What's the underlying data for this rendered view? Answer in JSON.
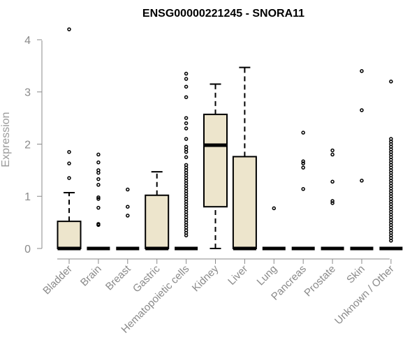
{
  "chart_data": {
    "type": "boxplot",
    "title": "ENSG00000221245 - SNORA11",
    "xlabel": "",
    "ylabel": "Expression",
    "ylim": [
      0,
      4.2
    ],
    "yticks": [
      0,
      1,
      2,
      3,
      4
    ],
    "grid": false,
    "legend": "none",
    "colors": {
      "box_fill": "#ede5cc",
      "stroke": "#000000",
      "axis": "#8a8a8a"
    },
    "categories": [
      "Bladder",
      "Brain",
      "Breast",
      "Gastric",
      "Hematopoietic cells",
      "Kidney",
      "Liver",
      "Lung",
      "Pancreas",
      "Prostate",
      "Skin",
      "Unknown / Other"
    ],
    "boxes": [
      {
        "name": "Bladder",
        "q1": 0,
        "median": 0,
        "q3": 0.52,
        "whisker_low": 0,
        "whisker_high": 1.07,
        "outliers": [
          1.35,
          1.63,
          1.85,
          4.2
        ]
      },
      {
        "name": "Brain",
        "q1": 0,
        "median": 0,
        "q3": 0,
        "whisker_low": 0,
        "whisker_high": 0,
        "outliers": [
          0.45,
          0.47,
          0.78,
          0.95,
          0.98,
          1.22,
          1.33,
          1.45,
          1.5,
          1.65,
          1.8
        ]
      },
      {
        "name": "Breast",
        "q1": 0,
        "median": 0,
        "q3": 0,
        "whisker_low": 0,
        "whisker_high": 0,
        "outliers": [
          0.63,
          0.8,
          1.13
        ]
      },
      {
        "name": "Gastric",
        "q1": 0,
        "median": 0,
        "q3": 1.02,
        "whisker_low": 0,
        "whisker_high": 1.47,
        "outliers": []
      },
      {
        "name": "Hematopoietic cells",
        "q1": 0,
        "median": 0,
        "q3": 0,
        "whisker_low": 0,
        "whisker_high": 0,
        "outliers": [
          0.25,
          0.3,
          0.35,
          0.4,
          0.45,
          0.5,
          0.55,
          0.6,
          0.65,
          0.7,
          0.75,
          0.8,
          0.85,
          0.9,
          0.95,
          1.0,
          1.05,
          1.1,
          1.15,
          1.2,
          1.25,
          1.3,
          1.35,
          1.4,
          1.45,
          1.5,
          1.55,
          1.6,
          1.75,
          1.85,
          1.9,
          1.95,
          2.1,
          2.3,
          2.4,
          2.5,
          2.9,
          3.1,
          3.25,
          3.35
        ]
      },
      {
        "name": "Kidney",
        "q1": 0.8,
        "median": 1.98,
        "q3": 2.57,
        "whisker_low": 0,
        "whisker_high": 3.15,
        "outliers": []
      },
      {
        "name": "Liver",
        "q1": 0,
        "median": 0,
        "q3": 1.76,
        "whisker_low": 0,
        "whisker_high": 3.47,
        "outliers": []
      },
      {
        "name": "Lung",
        "q1": 0,
        "median": 0,
        "q3": 0,
        "whisker_low": 0,
        "whisker_high": 0,
        "outliers": [
          0.77
        ]
      },
      {
        "name": "Pancreas",
        "q1": 0,
        "median": 0,
        "q3": 0,
        "whisker_low": 0,
        "whisker_high": 0,
        "outliers": [
          1.14,
          1.55,
          1.63,
          1.67,
          2.22
        ]
      },
      {
        "name": "Prostate",
        "q1": 0,
        "median": 0,
        "q3": 0,
        "whisker_low": 0,
        "whisker_high": 0,
        "outliers": [
          0.87,
          0.91,
          1.28,
          1.8,
          1.88
        ]
      },
      {
        "name": "Skin",
        "q1": 0,
        "median": 0,
        "q3": 0,
        "whisker_low": 0,
        "whisker_high": 0,
        "outliers": [
          1.3,
          2.65,
          3.4
        ]
      },
      {
        "name": "Unknown / Other",
        "q1": 0,
        "median": 0,
        "q3": 0,
        "whisker_low": 0,
        "whisker_high": 0,
        "outliers": [
          0.15,
          0.2,
          0.25,
          0.3,
          0.35,
          0.4,
          0.45,
          0.5,
          0.55,
          0.6,
          0.65,
          0.7,
          0.75,
          0.8,
          0.85,
          0.9,
          0.95,
          1.0,
          1.05,
          1.1,
          1.15,
          1.2,
          1.25,
          1.3,
          1.35,
          1.4,
          1.45,
          1.5,
          1.55,
          1.6,
          1.65,
          1.7,
          1.75,
          1.8,
          1.85,
          1.9,
          1.95,
          2.0,
          2.05,
          2.1,
          3.2
        ]
      }
    ]
  }
}
